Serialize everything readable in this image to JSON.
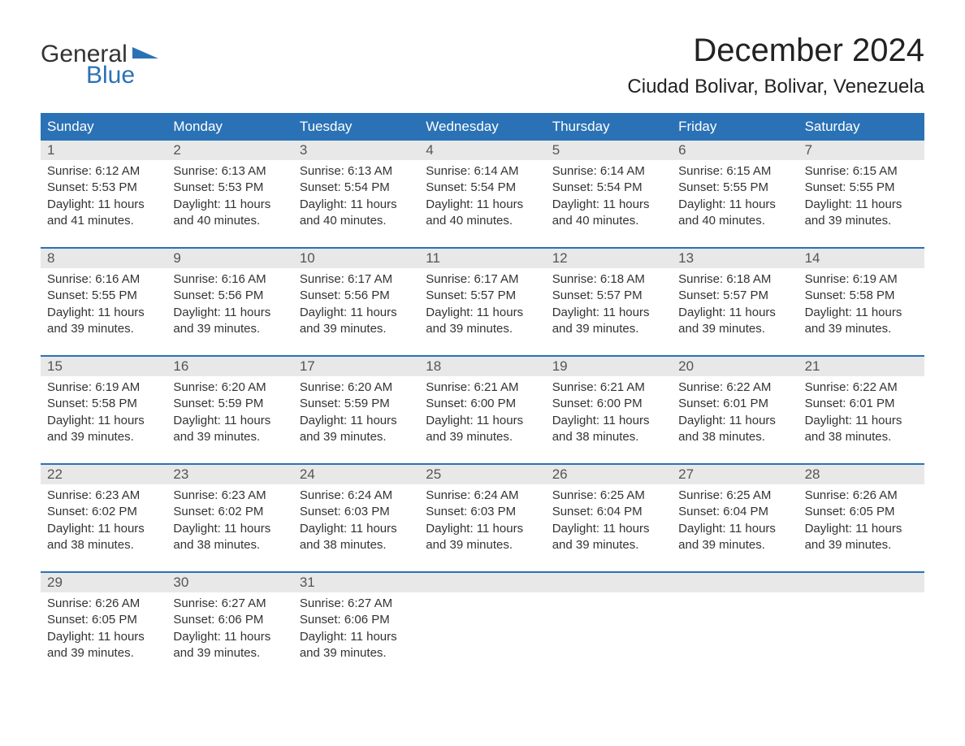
{
  "logo": {
    "general": "General",
    "blue": "Blue"
  },
  "title": "December 2024",
  "location": "Ciudad Bolivar, Bolivar, Venezuela",
  "header_bg": "#2a72b5",
  "header_fg": "#ffffff",
  "daynum_bg": "#e8e8e8",
  "text_color": "#333333",
  "weekdays": [
    "Sunday",
    "Monday",
    "Tuesday",
    "Wednesday",
    "Thursday",
    "Friday",
    "Saturday"
  ],
  "weeks": [
    [
      {
        "day": "1",
        "sunrise": "Sunrise: 6:12 AM",
        "sunset": "Sunset: 5:53 PM",
        "dl1": "Daylight: 11 hours",
        "dl2": "and 41 minutes."
      },
      {
        "day": "2",
        "sunrise": "Sunrise: 6:13 AM",
        "sunset": "Sunset: 5:53 PM",
        "dl1": "Daylight: 11 hours",
        "dl2": "and 40 minutes."
      },
      {
        "day": "3",
        "sunrise": "Sunrise: 6:13 AM",
        "sunset": "Sunset: 5:54 PM",
        "dl1": "Daylight: 11 hours",
        "dl2": "and 40 minutes."
      },
      {
        "day": "4",
        "sunrise": "Sunrise: 6:14 AM",
        "sunset": "Sunset: 5:54 PM",
        "dl1": "Daylight: 11 hours",
        "dl2": "and 40 minutes."
      },
      {
        "day": "5",
        "sunrise": "Sunrise: 6:14 AM",
        "sunset": "Sunset: 5:54 PM",
        "dl1": "Daylight: 11 hours",
        "dl2": "and 40 minutes."
      },
      {
        "day": "6",
        "sunrise": "Sunrise: 6:15 AM",
        "sunset": "Sunset: 5:55 PM",
        "dl1": "Daylight: 11 hours",
        "dl2": "and 40 minutes."
      },
      {
        "day": "7",
        "sunrise": "Sunrise: 6:15 AM",
        "sunset": "Sunset: 5:55 PM",
        "dl1": "Daylight: 11 hours",
        "dl2": "and 39 minutes."
      }
    ],
    [
      {
        "day": "8",
        "sunrise": "Sunrise: 6:16 AM",
        "sunset": "Sunset: 5:55 PM",
        "dl1": "Daylight: 11 hours",
        "dl2": "and 39 minutes."
      },
      {
        "day": "9",
        "sunrise": "Sunrise: 6:16 AM",
        "sunset": "Sunset: 5:56 PM",
        "dl1": "Daylight: 11 hours",
        "dl2": "and 39 minutes."
      },
      {
        "day": "10",
        "sunrise": "Sunrise: 6:17 AM",
        "sunset": "Sunset: 5:56 PM",
        "dl1": "Daylight: 11 hours",
        "dl2": "and 39 minutes."
      },
      {
        "day": "11",
        "sunrise": "Sunrise: 6:17 AM",
        "sunset": "Sunset: 5:57 PM",
        "dl1": "Daylight: 11 hours",
        "dl2": "and 39 minutes."
      },
      {
        "day": "12",
        "sunrise": "Sunrise: 6:18 AM",
        "sunset": "Sunset: 5:57 PM",
        "dl1": "Daylight: 11 hours",
        "dl2": "and 39 minutes."
      },
      {
        "day": "13",
        "sunrise": "Sunrise: 6:18 AM",
        "sunset": "Sunset: 5:57 PM",
        "dl1": "Daylight: 11 hours",
        "dl2": "and 39 minutes."
      },
      {
        "day": "14",
        "sunrise": "Sunrise: 6:19 AM",
        "sunset": "Sunset: 5:58 PM",
        "dl1": "Daylight: 11 hours",
        "dl2": "and 39 minutes."
      }
    ],
    [
      {
        "day": "15",
        "sunrise": "Sunrise: 6:19 AM",
        "sunset": "Sunset: 5:58 PM",
        "dl1": "Daylight: 11 hours",
        "dl2": "and 39 minutes."
      },
      {
        "day": "16",
        "sunrise": "Sunrise: 6:20 AM",
        "sunset": "Sunset: 5:59 PM",
        "dl1": "Daylight: 11 hours",
        "dl2": "and 39 minutes."
      },
      {
        "day": "17",
        "sunrise": "Sunrise: 6:20 AM",
        "sunset": "Sunset: 5:59 PM",
        "dl1": "Daylight: 11 hours",
        "dl2": "and 39 minutes."
      },
      {
        "day": "18",
        "sunrise": "Sunrise: 6:21 AM",
        "sunset": "Sunset: 6:00 PM",
        "dl1": "Daylight: 11 hours",
        "dl2": "and 39 minutes."
      },
      {
        "day": "19",
        "sunrise": "Sunrise: 6:21 AM",
        "sunset": "Sunset: 6:00 PM",
        "dl1": "Daylight: 11 hours",
        "dl2": "and 38 minutes."
      },
      {
        "day": "20",
        "sunrise": "Sunrise: 6:22 AM",
        "sunset": "Sunset: 6:01 PM",
        "dl1": "Daylight: 11 hours",
        "dl2": "and 38 minutes."
      },
      {
        "day": "21",
        "sunrise": "Sunrise: 6:22 AM",
        "sunset": "Sunset: 6:01 PM",
        "dl1": "Daylight: 11 hours",
        "dl2": "and 38 minutes."
      }
    ],
    [
      {
        "day": "22",
        "sunrise": "Sunrise: 6:23 AM",
        "sunset": "Sunset: 6:02 PM",
        "dl1": "Daylight: 11 hours",
        "dl2": "and 38 minutes."
      },
      {
        "day": "23",
        "sunrise": "Sunrise: 6:23 AM",
        "sunset": "Sunset: 6:02 PM",
        "dl1": "Daylight: 11 hours",
        "dl2": "and 38 minutes."
      },
      {
        "day": "24",
        "sunrise": "Sunrise: 6:24 AM",
        "sunset": "Sunset: 6:03 PM",
        "dl1": "Daylight: 11 hours",
        "dl2": "and 38 minutes."
      },
      {
        "day": "25",
        "sunrise": "Sunrise: 6:24 AM",
        "sunset": "Sunset: 6:03 PM",
        "dl1": "Daylight: 11 hours",
        "dl2": "and 39 minutes."
      },
      {
        "day": "26",
        "sunrise": "Sunrise: 6:25 AM",
        "sunset": "Sunset: 6:04 PM",
        "dl1": "Daylight: 11 hours",
        "dl2": "and 39 minutes."
      },
      {
        "day": "27",
        "sunrise": "Sunrise: 6:25 AM",
        "sunset": "Sunset: 6:04 PM",
        "dl1": "Daylight: 11 hours",
        "dl2": "and 39 minutes."
      },
      {
        "day": "28",
        "sunrise": "Sunrise: 6:26 AM",
        "sunset": "Sunset: 6:05 PM",
        "dl1": "Daylight: 11 hours",
        "dl2": "and 39 minutes."
      }
    ],
    [
      {
        "day": "29",
        "sunrise": "Sunrise: 6:26 AM",
        "sunset": "Sunset: 6:05 PM",
        "dl1": "Daylight: 11 hours",
        "dl2": "and 39 minutes."
      },
      {
        "day": "30",
        "sunrise": "Sunrise: 6:27 AM",
        "sunset": "Sunset: 6:06 PM",
        "dl1": "Daylight: 11 hours",
        "dl2": "and 39 minutes."
      },
      {
        "day": "31",
        "sunrise": "Sunrise: 6:27 AM",
        "sunset": "Sunset: 6:06 PM",
        "dl1": "Daylight: 11 hours",
        "dl2": "and 39 minutes."
      },
      null,
      null,
      null,
      null
    ]
  ]
}
